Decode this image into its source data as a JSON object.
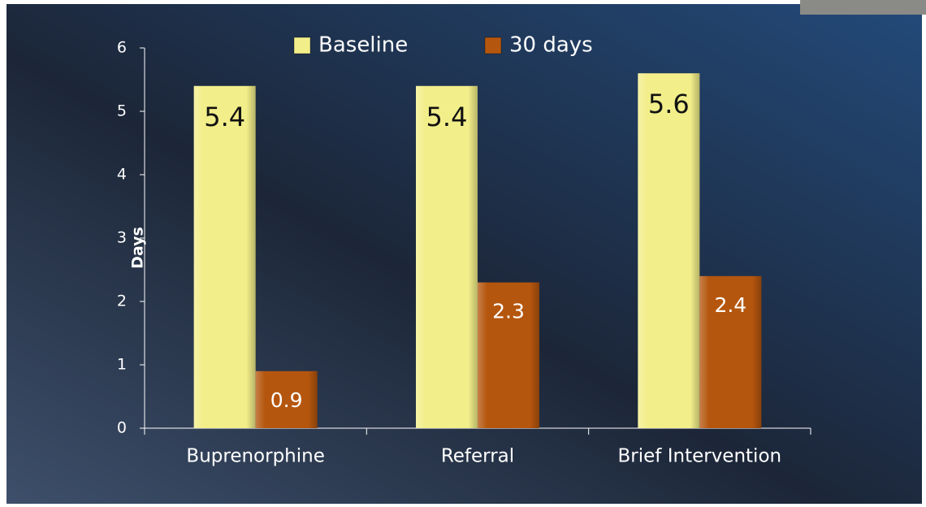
{
  "chart_data": {
    "type": "bar",
    "y_label": "Days",
    "categories": [
      "Buprenorphine",
      "Referral",
      "Brief Intervention"
    ],
    "series": [
      {
        "name": "Baseline",
        "color": "#f2ee8a",
        "label_color": "#111111",
        "values": [
          5.4,
          5.4,
          5.6
        ]
      },
      {
        "name": "30 days",
        "color": "#b5560e",
        "label_color": "#ffffff",
        "values": [
          0.9,
          2.3,
          2.4
        ]
      }
    ],
    "ylim": [
      0,
      6
    ],
    "yticks": [
      0,
      1,
      2,
      3,
      4,
      5,
      6
    ],
    "grid": false,
    "legend": "top"
  }
}
